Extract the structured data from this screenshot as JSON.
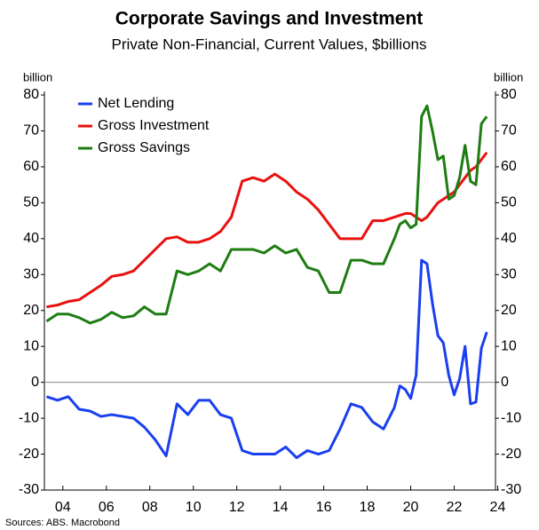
{
  "chart_data": {
    "type": "line",
    "title": "Corporate Savings and Investment",
    "subtitle": "Private Non-Financial, Current Values, $billions",
    "y_label": "billion",
    "y2_label": "billion",
    "source": "Sources: ABS. Macrobond",
    "legend": "upper left",
    "x": [
      2003.25,
      2003.75,
      2004.25,
      2004.75,
      2005.25,
      2005.75,
      2006.25,
      2006.75,
      2007.25,
      2007.75,
      2008.25,
      2008.75,
      2009.25,
      2009.75,
      2010.25,
      2010.75,
      2011.25,
      2011.75,
      2012.25,
      2012.75,
      2013.25,
      2013.75,
      2014.25,
      2014.75,
      2015.25,
      2015.75,
      2016.25,
      2016.75,
      2017.25,
      2017.75,
      2018.25,
      2018.75,
      2019.25,
      2019.5,
      2019.75,
      2020.0,
      2020.25,
      2020.5,
      2020.75,
      2021.0,
      2021.25,
      2021.5,
      2021.75,
      2022.0,
      2022.25,
      2022.5,
      2022.75,
      2023.0,
      2023.25,
      2023.5
    ],
    "series": [
      {
        "name": "Net Lending",
        "color": "#1a3ff0",
        "values": [
          -4,
          -5,
          -4,
          -7.5,
          -8,
          -9.5,
          -9,
          -9.5,
          -10,
          -12.5,
          -16,
          -20.5,
          -6,
          -9,
          -5,
          -5,
          -9,
          -10,
          -19,
          -20,
          -20,
          -20,
          -18,
          -21,
          -19,
          -20,
          -19,
          -13,
          -6,
          -7,
          -11,
          -13,
          -7,
          -1,
          -2,
          -4.5,
          2,
          34,
          33,
          22,
          13,
          11,
          2,
          -3.5,
          1,
          10,
          -6,
          -5.5,
          9.5,
          14
        ]
      },
      {
        "name": "Gross Investment",
        "color": "#e8110f",
        "values": [
          21,
          21.5,
          22.5,
          23,
          25,
          27,
          29.5,
          30,
          31,
          34,
          37,
          40,
          40.5,
          39,
          39,
          40,
          42,
          46,
          56,
          57,
          56,
          58,
          56,
          53,
          51,
          48,
          44,
          40,
          40,
          40,
          45,
          45,
          46,
          46.5,
          47,
          47,
          46,
          45,
          46,
          48,
          50,
          51,
          52,
          53,
          55,
          57,
          59,
          60,
          62,
          64
        ]
      },
      {
        "name": "Gross Savings",
        "color": "#1e7d12",
        "values": [
          17,
          19,
          19,
          18,
          16.5,
          17.5,
          19.5,
          18,
          18.5,
          21,
          19,
          19,
          31,
          30,
          31,
          33,
          31,
          37,
          37,
          37,
          36,
          38,
          36,
          37,
          32,
          31,
          25,
          25,
          34,
          34,
          33,
          33,
          40,
          44,
          45,
          43,
          44,
          74,
          77,
          70,
          62,
          63,
          51,
          52,
          57,
          66,
          56,
          55,
          72,
          74
        ]
      }
    ],
    "xlim": [
      2003.15,
      2023.9
    ],
    "xticks": [
      {
        "value": 2004,
        "label": "04"
      },
      {
        "value": 2006,
        "label": "06"
      },
      {
        "value": 2008,
        "label": "08"
      },
      {
        "value": 2010,
        "label": "10"
      },
      {
        "value": 2012,
        "label": "12"
      },
      {
        "value": 2014,
        "label": "14"
      },
      {
        "value": 2016,
        "label": "16"
      },
      {
        "value": 2018,
        "label": "18"
      },
      {
        "value": 2020,
        "label": "20"
      },
      {
        "value": 2022,
        "label": "22"
      },
      {
        "value": 2024,
        "label": "24"
      }
    ],
    "ylim": [
      -30,
      80
    ],
    "yticks": [
      -30,
      -20,
      -10,
      0,
      10,
      20,
      30,
      40,
      50,
      60,
      70,
      80
    ],
    "y2lim": [
      -30,
      80
    ],
    "y2ticks": [
      -30,
      -20,
      -10,
      0,
      10,
      20,
      30,
      40,
      50,
      60,
      70,
      80
    ]
  }
}
